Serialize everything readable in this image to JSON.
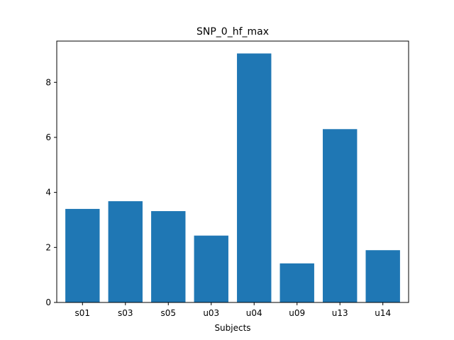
{
  "chart_data": {
    "type": "bar",
    "title": "SNP_0_hf_max",
    "xlabel": "Subjects",
    "ylabel": "",
    "categories": [
      "s01",
      "s03",
      "s05",
      "u03",
      "u04",
      "u09",
      "u13",
      "u14"
    ],
    "values": [
      3.4,
      3.68,
      3.32,
      2.43,
      9.05,
      1.42,
      6.3,
      1.9
    ],
    "ylim": [
      0,
      9.5
    ],
    "yticks": [
      0,
      2,
      4,
      6,
      8
    ],
    "bar_color": "#1f77b4",
    "grid": false,
    "legend": "none"
  }
}
